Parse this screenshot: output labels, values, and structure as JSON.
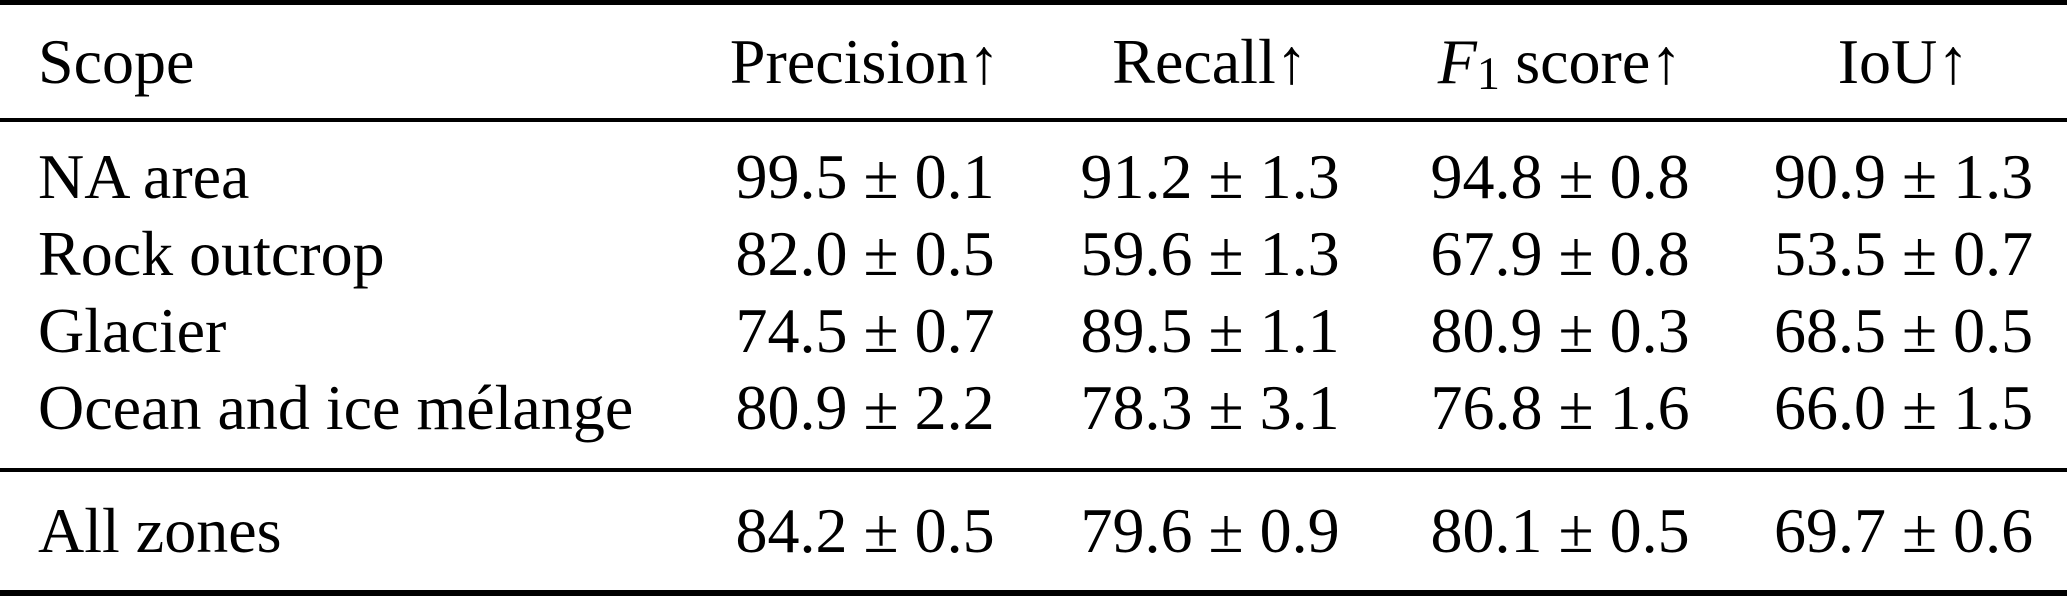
{
  "table": {
    "header": {
      "scope": "Scope",
      "precision": "Precision",
      "recall": "Recall",
      "f1_letter": "F",
      "f1_subscript": "1",
      "f1_rest": "score",
      "iou": "IoU",
      "arrow": "↑"
    },
    "rows": [
      {
        "cells": [
          "NA area",
          "99.5 ± 0.1",
          "91.2 ± 1.3",
          "94.8 ± 0.8",
          "90.9 ± 1.3"
        ]
      },
      {
        "cells": [
          "Rock outcrop",
          "82.0 ± 0.5",
          "59.6 ± 1.3",
          "67.9 ± 0.8",
          "53.5 ± 0.7"
        ]
      },
      {
        "cells": [
          "Glacier",
          "74.5 ± 0.7",
          "89.5 ± 1.1",
          "80.9 ± 0.3",
          "68.5 ± 0.5"
        ]
      },
      {
        "cells": [
          "Ocean and ice mélange",
          "80.9 ± 2.2",
          "78.3 ± 3.1",
          "76.8 ± 1.6",
          "66.0 ± 1.5"
        ]
      }
    ],
    "summary_row": {
      "cells": [
        "All zones",
        "84.2 ± 0.5",
        "79.6 ± 0.9",
        "80.1 ± 0.5",
        "69.7 ± 0.6"
      ]
    }
  },
  "chart_data": {
    "type": "table",
    "columns": [
      "Scope",
      "Precision↑",
      "Recall↑",
      "F1 score↑",
      "IoU↑"
    ],
    "rows": [
      [
        "NA area",
        "99.5 ± 0.1",
        "91.2 ± 1.3",
        "94.8 ± 0.8",
        "90.9 ± 1.3"
      ],
      [
        "Rock outcrop",
        "82.0 ± 0.5",
        "59.6 ± 1.3",
        "67.9 ± 0.8",
        "53.5 ± 0.7"
      ],
      [
        "Glacier",
        "74.5 ± 0.7",
        "89.5 ± 1.1",
        "80.9 ± 0.3",
        "68.5 ± 0.5"
      ],
      [
        "Ocean and ice mélange",
        "80.9 ± 2.2",
        "78.3 ± 3.1",
        "76.8 ± 1.6",
        "66.0 ± 1.5"
      ],
      [
        "All zones",
        "84.2 ± 0.5",
        "79.6 ± 0.9",
        "80.1 ± 0.5",
        "69.7 ± 0.6"
      ]
    ]
  }
}
